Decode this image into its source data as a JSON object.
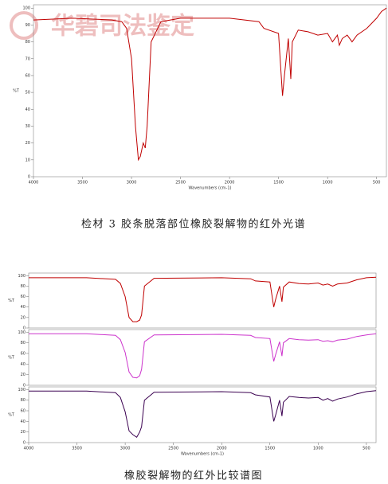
{
  "document": {
    "watermark": "华碧司法鉴定",
    "caption_top": "检材 3 胶条脱落部位橡胶裂解物的红外光谱",
    "caption_bottom": "橡胶裂解物的红外比较谱图"
  },
  "chart_data": [
    {
      "type": "line",
      "xlabel": "Wavenumbers (cm-1)",
      "ylabel": "%T",
      "x": [
        4000,
        3600,
        3200,
        3100,
        3050,
        3000,
        2960,
        2930,
        2910,
        2880,
        2860,
        2840,
        2800,
        2700,
        2500,
        2000,
        1700,
        1650,
        1500,
        1460,
        1440,
        1400,
        1375,
        1360,
        1300,
        1200,
        1100,
        1000,
        950,
        900,
        880,
        850,
        800,
        750,
        700,
        600,
        500,
        450,
        400
      ],
      "series": [
        {
          "color": "#c00000",
          "values": [
            93,
            94,
            93,
            92,
            88,
            70,
            30,
            10,
            12,
            20,
            17,
            30,
            80,
            92,
            94,
            94,
            92,
            88,
            85,
            48,
            60,
            82,
            58,
            80,
            87,
            86,
            84,
            85,
            80,
            84,
            78,
            82,
            84,
            80,
            84,
            88,
            94,
            98,
            100
          ]
        }
      ],
      "xlim": [
        4000,
        400
      ],
      "ylim": [
        0,
        102
      ],
      "xticks": [
        4000,
        3500,
        3000,
        2500,
        2000,
        1500,
        1000,
        500
      ],
      "yticks": [
        0,
        10,
        20,
        30,
        40,
        50,
        60,
        70,
        80,
        90,
        100
      ]
    },
    {
      "type": "line",
      "ylabel": "%T",
      "x": [
        4000,
        3400,
        3100,
        3050,
        3000,
        2960,
        2920,
        2880,
        2850,
        2830,
        2800,
        2700,
        2000,
        1700,
        1650,
        1500,
        1460,
        1440,
        1400,
        1375,
        1360,
        1300,
        1200,
        1100,
        1000,
        950,
        900,
        850,
        800,
        700,
        600,
        500,
        400
      ],
      "series": [
        {
          "color": "#c00000",
          "values": [
            96,
            96,
            93,
            85,
            60,
            20,
            12,
            12,
            15,
            25,
            80,
            95,
            96,
            94,
            90,
            88,
            40,
            55,
            80,
            50,
            78,
            88,
            85,
            84,
            86,
            82,
            84,
            80,
            84,
            86,
            92,
            96,
            97
          ]
        }
      ],
      "xlim": [
        4000,
        400
      ],
      "ylim": [
        0,
        105
      ],
      "yticks": [
        0,
        20,
        40,
        60,
        80,
        100
      ]
    },
    {
      "type": "line",
      "ylabel": "%T",
      "x": [
        4000,
        3400,
        3100,
        3050,
        3000,
        2960,
        2920,
        2880,
        2850,
        2830,
        2800,
        2700,
        2000,
        1700,
        1650,
        1500,
        1460,
        1440,
        1400,
        1375,
        1360,
        1300,
        1200,
        1100,
        1000,
        950,
        900,
        850,
        800,
        700,
        600,
        500,
        400
      ],
      "series": [
        {
          "color": "#cc33cc",
          "values": [
            97,
            97,
            94,
            86,
            62,
            25,
            15,
            14,
            18,
            30,
            82,
            95,
            96,
            94,
            90,
            88,
            45,
            58,
            82,
            55,
            80,
            88,
            86,
            85,
            86,
            83,
            84,
            82,
            85,
            87,
            92,
            95,
            97
          ]
        }
      ],
      "xlim": [
        4000,
        400
      ],
      "ylim": [
        0,
        105
      ],
      "yticks": [
        0,
        20,
        40,
        60,
        80,
        100
      ]
    },
    {
      "type": "line",
      "xlabel": "Wavenumbers (cm-1)",
      "ylabel": "%T",
      "x": [
        4000,
        3400,
        3100,
        3050,
        3000,
        2960,
        2920,
        2880,
        2850,
        2830,
        2800,
        2700,
        2000,
        1700,
        1650,
        1500,
        1460,
        1440,
        1400,
        1375,
        1360,
        1300,
        1200,
        1100,
        1000,
        950,
        900,
        850,
        800,
        700,
        600,
        500,
        400
      ],
      "series": [
        {
          "color": "#3a0050",
          "values": [
            97,
            97,
            94,
            85,
            58,
            22,
            15,
            10,
            20,
            30,
            80,
            95,
            96,
            94,
            90,
            86,
            40,
            52,
            80,
            50,
            76,
            87,
            85,
            84,
            85,
            80,
            83,
            78,
            82,
            86,
            92,
            96,
            98
          ]
        }
      ],
      "xlim": [
        4000,
        400
      ],
      "ylim": [
        0,
        105
      ],
      "xticks": [
        4000,
        3500,
        3000,
        2500,
        2000,
        1500,
        1000,
        500
      ],
      "yticks": [
        0,
        20,
        40,
        60,
        80,
        100
      ]
    }
  ]
}
